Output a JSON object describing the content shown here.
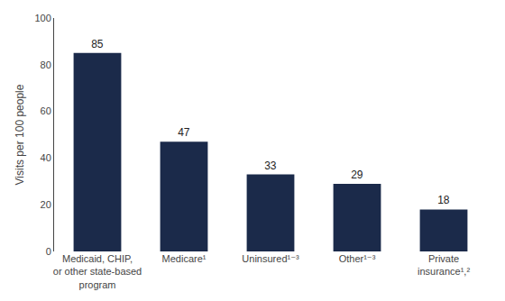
{
  "chart_data": {
    "type": "bar",
    "categories": [
      "Medicaid, CHIP,\nor other state-based\nprogram",
      "Medicare¹",
      "Uninsured¹⁻³",
      "Other¹⁻³",
      "Private\ninsurance¹,²"
    ],
    "values": [
      85,
      47,
      33,
      29,
      18
    ],
    "color": "#1b2a4a",
    "ylabel": "Visits per 100 people",
    "ylim": [
      0,
      100
    ],
    "yticks": [
      0,
      20,
      40,
      60,
      80,
      100
    ],
    "grid": false,
    "data_labels": true
  }
}
